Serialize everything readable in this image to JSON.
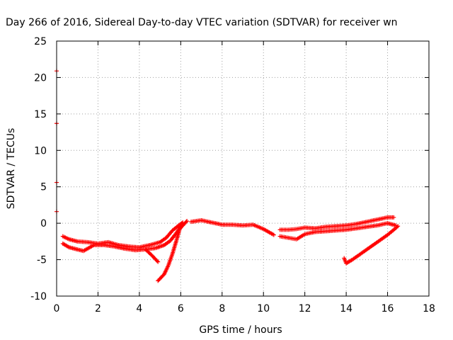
{
  "chart_data": {
    "type": "scatter",
    "title": "Day 266 of 2016, Sidereal Day-to-day VTEC variation (SDTVAR) for receiver wn",
    "xlabel": "GPS time / hours",
    "ylabel": "SDTVAR / TECUs",
    "xlim": [
      0,
      18
    ],
    "ylim": [
      -10,
      25
    ],
    "xticks": [
      "0",
      "2",
      "4",
      "6",
      "8",
      "10",
      "12",
      "14",
      "16",
      "18"
    ],
    "yticks": [
      "-10",
      "-5",
      "0",
      "5",
      "10",
      "15",
      "20",
      "25"
    ],
    "grid": true,
    "point_color": "#ff0000",
    "series": [
      {
        "points": [
          [
            0.0,
            20.9
          ],
          [
            0.0,
            13.7
          ],
          [
            0.0,
            5.6
          ],
          [
            0.0,
            1.6
          ]
        ]
      },
      {
        "points": [
          [
            0.3,
            -1.8
          ],
          [
            0.6,
            -2.2
          ],
          [
            1.0,
            -2.5
          ],
          [
            1.5,
            -2.6
          ],
          [
            2.0,
            -2.8
          ],
          [
            2.5,
            -2.6
          ],
          [
            3.0,
            -3.0
          ],
          [
            3.5,
            -3.2
          ],
          [
            4.0,
            -3.3
          ],
          [
            4.5,
            -3.0
          ],
          [
            5.0,
            -2.6
          ],
          [
            5.3,
            -2.0
          ],
          [
            5.6,
            -1.0
          ],
          [
            5.9,
            -0.3
          ],
          [
            6.1,
            0.1
          ]
        ]
      },
      {
        "points": [
          [
            0.3,
            -2.8
          ],
          [
            0.6,
            -3.3
          ],
          [
            1.0,
            -3.6
          ],
          [
            1.3,
            -3.8
          ],
          [
            1.8,
            -3.0
          ],
          [
            2.3,
            -3.0
          ],
          [
            2.8,
            -3.2
          ],
          [
            3.3,
            -3.5
          ],
          [
            3.8,
            -3.7
          ],
          [
            4.3,
            -3.6
          ],
          [
            4.8,
            -3.4
          ],
          [
            5.2,
            -3.0
          ],
          [
            5.5,
            -2.4
          ],
          [
            5.8,
            -1.3
          ],
          [
            6.0,
            -0.5
          ]
        ]
      },
      {
        "points": [
          [
            4.3,
            -3.6
          ],
          [
            4.6,
            -4.4
          ],
          [
            4.9,
            -5.3
          ]
        ]
      },
      {
        "points": [
          [
            4.9,
            -7.9
          ],
          [
            5.2,
            -7.0
          ],
          [
            5.4,
            -5.8
          ],
          [
            5.6,
            -4.2
          ],
          [
            5.8,
            -2.3
          ],
          [
            5.95,
            -0.8
          ],
          [
            6.1,
            -0.3
          ],
          [
            6.3,
            0.3
          ]
        ]
      },
      {
        "points": [
          [
            6.5,
            0.2
          ],
          [
            7.0,
            0.4
          ],
          [
            7.5,
            0.1
          ],
          [
            8.0,
            -0.2
          ],
          [
            8.5,
            -0.2
          ],
          [
            9.0,
            -0.3
          ],
          [
            9.5,
            -0.2
          ],
          [
            10.0,
            -0.8
          ],
          [
            10.5,
            -1.6
          ]
        ]
      },
      {
        "points": [
          [
            10.8,
            -0.9
          ],
          [
            11.2,
            -0.9
          ],
          [
            11.6,
            -0.8
          ],
          [
            12.0,
            -0.6
          ],
          [
            12.5,
            -0.7
          ],
          [
            13.0,
            -0.5
          ],
          [
            13.5,
            -0.4
          ],
          [
            14.0,
            -0.3
          ],
          [
            14.5,
            -0.1
          ],
          [
            15.0,
            0.2
          ],
          [
            15.5,
            0.5
          ],
          [
            16.0,
            0.8
          ],
          [
            16.3,
            0.8
          ]
        ]
      },
      {
        "points": [
          [
            10.8,
            -1.8
          ],
          [
            11.2,
            -2.0
          ],
          [
            11.6,
            -2.2
          ],
          [
            12.0,
            -1.5
          ],
          [
            12.5,
            -1.2
          ],
          [
            13.0,
            -1.1
          ],
          [
            13.5,
            -1.0
          ],
          [
            14.0,
            -0.9
          ],
          [
            14.5,
            -0.7
          ],
          [
            15.0,
            -0.5
          ],
          [
            15.5,
            -0.3
          ],
          [
            16.0,
            0.0
          ],
          [
            16.4,
            -0.3
          ]
        ]
      },
      {
        "points": [
          [
            13.9,
            -4.8
          ],
          [
            14.0,
            -5.5
          ],
          [
            14.3,
            -5.0
          ],
          [
            14.8,
            -4.0
          ],
          [
            15.2,
            -3.2
          ],
          [
            15.6,
            -2.4
          ],
          [
            16.0,
            -1.6
          ],
          [
            16.3,
            -0.9
          ],
          [
            16.5,
            -0.4
          ]
        ]
      }
    ]
  }
}
